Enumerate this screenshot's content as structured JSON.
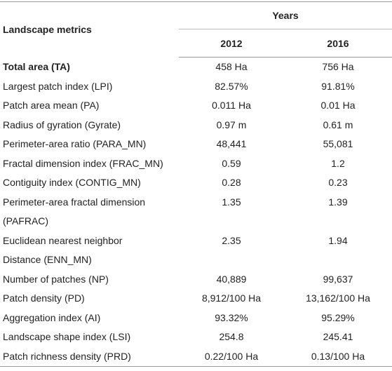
{
  "table": {
    "header": {
      "metric": "Landscape metrics",
      "years": "Years",
      "columns": [
        "2012",
        "2016"
      ]
    },
    "rows": [
      {
        "metric": [
          "Total area (TA)"
        ],
        "values": [
          "458 Ha",
          "756 Ha"
        ]
      },
      {
        "metric": [
          "Largest patch index (LPI)"
        ],
        "values": [
          "82.57%",
          "91.81%"
        ]
      },
      {
        "metric": [
          "Patch area mean (PA)"
        ],
        "values": [
          "0.011 Ha",
          "0.01 Ha"
        ]
      },
      {
        "metric": [
          "Radius of gyration (Gyrate)"
        ],
        "values": [
          "0.97 m",
          "0.61 m"
        ]
      },
      {
        "metric": [
          "Perimeter-area ratio (PARA_MN)"
        ],
        "values": [
          "48,441",
          "55,081"
        ]
      },
      {
        "metric": [
          "Fractal dimension index (FRAC_MN)"
        ],
        "values": [
          "0.59",
          "1.2"
        ]
      },
      {
        "metric": [
          "Contiguity index (CONTIG_MN)"
        ],
        "values": [
          "0.28",
          "0.23"
        ]
      },
      {
        "metric": [
          "Perimeter-area fractal dimension",
          "(PAFRAC)"
        ],
        "values": [
          "1.35",
          "1.39"
        ]
      },
      {
        "metric": [
          "Euclidean nearest neighbor",
          "Distance (ENN_MN)"
        ],
        "values": [
          "2.35",
          "1.94"
        ]
      },
      {
        "metric": [
          "Number of patches (NP)"
        ],
        "values": [
          "40,889",
          "99,637"
        ]
      },
      {
        "metric": [
          "Patch density (PD)"
        ],
        "values": [
          "8,912/100 Ha",
          "13,162/100 Ha"
        ]
      },
      {
        "metric": [
          "Aggregation index (AI)"
        ],
        "values": [
          "93.32%",
          "95.29%"
        ]
      },
      {
        "metric": [
          "Landscape shape index (LSI)"
        ],
        "values": [
          "254.8",
          "245.41"
        ]
      },
      {
        "metric": [
          "Patch richness density (PRD)"
        ],
        "values": [
          "0.22/100 Ha",
          "0.13/100 Ha"
        ]
      }
    ]
  }
}
